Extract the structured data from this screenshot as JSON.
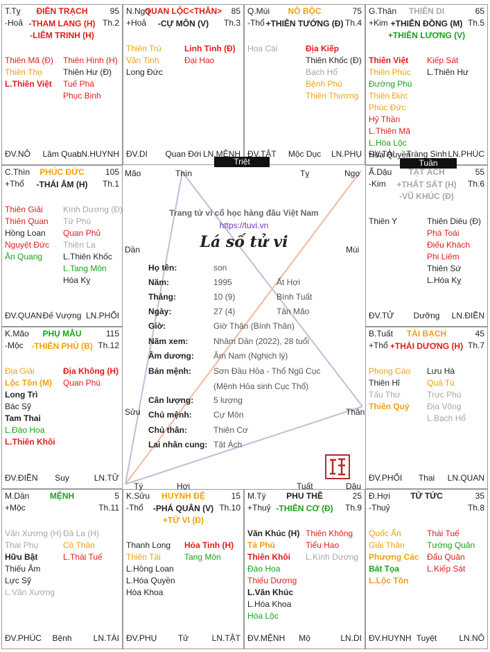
{
  "center": {
    "site_title": "Trang tử vi cổ học hàng đầu Việt Nam",
    "site_url": "https://tuvi.vn",
    "chart_title": "Lá số tử vi",
    "corners": {
      "mao": "Mão",
      "thin": "Thìn",
      "ty": "Tỵ",
      "ngo": "Ngọ",
      "dan": "Dần",
      "mui": "Mùi",
      "suu": "Sửu",
      "than": "Thân",
      "ty2": "Tý",
      "hoi": "Hợi",
      "tuat": "Tuất",
      "dau": "Dậu"
    },
    "rows": [
      {
        "label": "Họ tên:",
        "value": "son",
        "value2": ""
      },
      {
        "label": "Năm:",
        "value": "1995",
        "value2": "Ất Hợi"
      },
      {
        "label": "Tháng:",
        "value": "10 (9)",
        "value2": "Bính Tuất"
      },
      {
        "label": "Ngày:",
        "value": "27 (4)",
        "value2": "Tân Mão"
      },
      {
        "label": "Giờ:",
        "value": "Giờ Thân (Bính Thân)",
        "value2": ""
      },
      {
        "label": "Năm xem:",
        "value": "Nhâm Dần (2022), 28 tuổi",
        "value2": ""
      },
      {
        "label": "Âm dương:",
        "value": "Âm Nam (Nghịch lý)",
        "value2": ""
      },
      {
        "label": "Bản mệnh:",
        "value": "Sơn Đầu Hỏa - Thổ Ngũ Cục",
        "value2": ""
      },
      {
        "label": "",
        "value": "(Mệnh Hỏa sinh Cục Thổ)",
        "value2": ""
      },
      {
        "label": "Cân lượng:",
        "value": "5 lượng",
        "value2": ""
      },
      {
        "label": "Chủ mệnh:",
        "value": "Cự Môn",
        "value2": ""
      },
      {
        "label": "Chủ thân:",
        "value": "Thiên Cơ",
        "value2": ""
      },
      {
        "label": "Lai nhân cung:",
        "value": "Tật Ách",
        "value2": ""
      }
    ],
    "triet_label": "Triệt",
    "tuan_label": "Tuần"
  },
  "palaces": [
    {
      "id": "ty",
      "branch": "T.Tỵ",
      "element": "-Hoả",
      "palace": "ĐIỀN TRẠCH",
      "palace_color": "red",
      "age": "95",
      "th": "Th.2",
      "main": [
        {
          "t": "-THAM LANG (H)",
          "c": "red"
        },
        {
          "t": "-LIÊM TRINH (H)",
          "c": "red"
        }
      ],
      "left": [
        {
          "t": "Thiên Mã (Đ)",
          "c": "red"
        },
        {
          "t": "Thiên Thọ",
          "c": "org"
        },
        {
          "t": "L.Thiên Việt",
          "c": "red",
          "b": true
        }
      ],
      "right": [
        {
          "t": "Thiên Hình (H)",
          "c": "red"
        },
        {
          "t": "Thiên Hư (Đ)",
          "c": "blk"
        },
        {
          "t": "Tuế Phá",
          "c": "red"
        },
        {
          "t": "Phục Binh",
          "c": "red"
        }
      ],
      "foot": [
        "ĐV.NÔ",
        "Lâm Quan",
        "LN.HUYNH"
      ]
    },
    {
      "id": "ngo",
      "branch": "N.Ngọ",
      "element": "+Hoả",
      "palace": "QUAN LỘC<THÂN>",
      "palace_color": "red",
      "age": "85",
      "th": "Th.3",
      "main": [
        {
          "t": "-CỰ MÔN (V)",
          "c": "blk"
        }
      ],
      "left": [
        {
          "t": "Thiên Trù",
          "c": "org"
        },
        {
          "t": "Văn Tinh",
          "c": "org"
        },
        {
          "t": "Long Đức",
          "c": "blk"
        }
      ],
      "right": [
        {
          "t": "Linh Tinh (Đ)",
          "c": "red",
          "b": true
        },
        {
          "t": "Đại Hao",
          "c": "red"
        }
      ],
      "foot": [
        "ĐV.DI",
        "Quan Đới",
        "LN.MỆNH"
      ]
    },
    {
      "id": "mui",
      "branch": "Q.Mùi",
      "element": "-Thổ",
      "palace": "NÔ BỘC",
      "palace_color": "org",
      "age": "75",
      "th": "Th.4",
      "main": [
        {
          "t": "+THIÊN TƯỚNG (Đ)",
          "c": "blk"
        }
      ],
      "left": [
        {
          "t": "Hoa Cái",
          "c": "gry"
        }
      ],
      "right": [
        {
          "t": "Địa Kiếp",
          "c": "red",
          "b": true
        },
        {
          "t": "Thiên Khốc (Đ)",
          "c": "blk"
        },
        {
          "t": "Bạch Hổ",
          "c": "gry"
        },
        {
          "t": "Bệnh Phù",
          "c": "org"
        },
        {
          "t": "Thiên Thương",
          "c": "org"
        }
      ],
      "foot": [
        "ĐV.TẬT",
        "Mộc Dục",
        "LN.PHỤ"
      ]
    },
    {
      "id": "than",
      "branch": "G.Thân",
      "element": "+Kim",
      "palace": "THIÊN DI",
      "palace_color": "gry",
      "age": "65",
      "th": "Th.5",
      "main": [
        {
          "t": "+THIÊN ĐỒNG (M)",
          "c": "blk"
        },
        {
          "t": "+THIÊN LƯƠNG (V)",
          "c": "grn"
        }
      ],
      "left": [
        {
          "t": "Thiên Việt",
          "c": "red",
          "b": true
        },
        {
          "t": "Thiên Phúc",
          "c": "org"
        },
        {
          "t": "Đường Phù",
          "c": "grn"
        },
        {
          "t": "Thiên Đức",
          "c": "org"
        },
        {
          "t": "Phúc Đức",
          "c": "org"
        },
        {
          "t": "Hỷ Thần",
          "c": "red"
        },
        {
          "t": "L.Thiên Mã",
          "c": "red"
        },
        {
          "t": "L.Hóa Lộc",
          "c": "grn"
        },
        {
          "t": "Hóa Quyền",
          "c": "blk"
        }
      ],
      "right": [
        {
          "t": "Kiếp Sát",
          "c": "red"
        },
        {
          "t": "L.Thiên Hư",
          "c": "blk"
        }
      ],
      "foot": [
        "ĐV.TÀI",
        "Tràng Sinh",
        "LN.PHÚC"
      ]
    },
    {
      "id": "thin",
      "branch": "C.Thìn",
      "element": "+Thổ",
      "palace": "PHÚC ĐỨC",
      "palace_color": "org",
      "age": "105",
      "th": "Th.1",
      "main": [
        {
          "t": "-THÁI ÂM (H)",
          "c": "blk"
        }
      ],
      "left": [
        {
          "t": "Thiên Giải",
          "c": "red"
        },
        {
          "t": "Thiên Quan",
          "c": "red"
        },
        {
          "t": "Hồng Loan",
          "c": "blk"
        },
        {
          "t": "Nguyệt Đức",
          "c": "red"
        },
        {
          "t": "Ân Quang",
          "c": "grn"
        }
      ],
      "right": [
        {
          "t": "Kình Dương (Đ)",
          "c": "gry"
        },
        {
          "t": "Tử Phù",
          "c": "gry"
        },
        {
          "t": "Quan Phủ",
          "c": "red"
        },
        {
          "t": "Thiên La",
          "c": "gry"
        },
        {
          "t": "L.Thiên Khốc",
          "c": "blk"
        },
        {
          "t": "L.Tang Môn",
          "c": "grn"
        },
        {
          "t": "Hóa Kỵ",
          "c": "blk"
        }
      ],
      "foot": [
        "ĐV.QUAN",
        "Đế Vượng",
        "LN.PHỐI"
      ]
    },
    {
      "id": "dau",
      "branch": "Ấ.Dậu",
      "element": "-Kim",
      "palace": "TẬT ÁCH",
      "palace_color": "gry",
      "age": "55",
      "th": "Th.6",
      "main": [
        {
          "t": "+THẤT SÁT (H)",
          "c": "gry"
        },
        {
          "t": "-VŨ KHÚC (Đ)",
          "c": "gry"
        }
      ],
      "left": [
        {
          "t": "Thiên Y",
          "c": "blk"
        }
      ],
      "right": [
        {
          "t": "Thiên Diêu (Đ)",
          "c": "blk"
        },
        {
          "t": "Phá Toái",
          "c": "red"
        },
        {
          "t": "Điếu Khách",
          "c": "red"
        },
        {
          "t": "Phi Liêm",
          "c": "red"
        },
        {
          "t": "Thiên Sứ",
          "c": "blk"
        },
        {
          "t": "L.Hóa Kỵ",
          "c": "blk"
        }
      ],
      "foot": [
        "ĐV.TỬ",
        "Dưỡng",
        "LN.ĐIỀN"
      ]
    },
    {
      "id": "mao",
      "branch": "K.Mão",
      "element": "-Mộc",
      "palace": "PHỤ MẪU",
      "palace_color": "grn",
      "age": "115",
      "th": "Th.12",
      "main": [
        {
          "t": "-THIÊN PHỦ (B)",
          "c": "org"
        }
      ],
      "left": [
        {
          "t": "Địa Giải",
          "c": "org"
        },
        {
          "t": "Lộc Tồn (M)",
          "c": "org",
          "b": true
        },
        {
          "t": "Long Trì",
          "c": "blk",
          "b": true
        },
        {
          "t": "Bác Sỹ",
          "c": "blk"
        },
        {
          "t": "Tam Thai",
          "c": "blk",
          "b": true
        },
        {
          "t": "L.Đào Hoa",
          "c": "grn"
        },
        {
          "t": "L.Thiên Khôi",
          "c": "red",
          "b": true
        }
      ],
      "right": [
        {
          "t": "Địa Không (H)",
          "c": "red",
          "b": true
        },
        {
          "t": "Quan Phù",
          "c": "red"
        }
      ],
      "foot": [
        "ĐV.ĐIỀN",
        "Suy",
        "LN.TỬ"
      ]
    },
    {
      "id": "tuat",
      "branch": "B.Tuất",
      "element": "+Thổ",
      "palace": "TÀI BẠCH",
      "palace_color": "org",
      "age": "45",
      "th": "Th.7",
      "main": [
        {
          "t": "+THÁI DƯƠNG (H)",
          "c": "red"
        }
      ],
      "left": [
        {
          "t": "Phong Cáo",
          "c": "org"
        },
        {
          "t": "Thiên Hỉ",
          "c": "blk"
        },
        {
          "t": "Tấu Thư",
          "c": "gry"
        },
        {
          "t": "Thiên Quý",
          "c": "org",
          "b": true
        }
      ],
      "right": [
        {
          "t": "Lưu Hà",
          "c": "blk"
        },
        {
          "t": "Quả Tú",
          "c": "org"
        },
        {
          "t": "Trực Phù",
          "c": "gry"
        },
        {
          "t": "Địa Võng",
          "c": "gry"
        },
        {
          "t": "L.Bạch Hổ",
          "c": "gry"
        }
      ],
      "foot": [
        "ĐV.PHỐI",
        "Thai",
        "LN.QUAN"
      ]
    },
    {
      "id": "dan",
      "branch": "M.Dần",
      "element": "+Mộc",
      "palace": "MỆNH",
      "palace_color": "grn",
      "age": "5",
      "th": "Th.11",
      "main": [],
      "left": [
        {
          "t": "Văn Xương (H)",
          "c": "gry"
        },
        {
          "t": "Thai Phụ",
          "c": "gry"
        },
        {
          "t": "Hữu Bật",
          "c": "blk",
          "b": true
        },
        {
          "t": "Thiếu Âm",
          "c": "blk"
        },
        {
          "t": "Lực Sỹ",
          "c": "blk"
        },
        {
          "t": "L.Văn Xương",
          "c": "gry"
        }
      ],
      "right": [
        {
          "t": "Đà La (H)",
          "c": "gry"
        },
        {
          "t": "Cô Thần",
          "c": "org"
        },
        {
          "t": "L.Thái Tuế",
          "c": "red"
        }
      ],
      "foot": [
        "ĐV.PHÚC",
        "Bệnh",
        "LN.TÀI"
      ]
    },
    {
      "id": "suu",
      "branch": "K.Sửu",
      "element": "-Thổ",
      "palace": "HUYNH ĐỆ",
      "palace_color": "org",
      "age": "15",
      "th": "Th.10",
      "main": [
        {
          "t": "-PHÁ QUÂN (V)",
          "c": "blk"
        },
        {
          "t": "+TỬ VI (Đ)",
          "c": "org"
        }
      ],
      "left": [
        {
          "t": "Thanh Long",
          "c": "blk"
        },
        {
          "t": "Thiên Tài",
          "c": "org"
        },
        {
          "t": "L.Hồng Loan",
          "c": "blk"
        },
        {
          "t": "L.Hóa Quyền",
          "c": "blk"
        },
        {
          "t": "Hóa Khoa",
          "c": "blk"
        }
      ],
      "right": [
        {
          "t": "Hỏa Tinh (H)",
          "c": "red",
          "b": true
        },
        {
          "t": "Tang Môn",
          "c": "grn"
        }
      ],
      "foot": [
        "ĐV.PHỤ",
        "Tử",
        "LN.TẬT"
      ]
    },
    {
      "id": "ty2",
      "branch": "M.Tý",
      "element": "+Thuỷ",
      "palace": "PHU THÊ",
      "palace_color": "blk",
      "age": "25",
      "th": "Th.9",
      "main": [
        {
          "t": "-THIÊN CƠ (Đ)",
          "c": "grn"
        }
      ],
      "left": [
        {
          "t": "Văn Khúc (H)",
          "c": "blk",
          "b": true
        },
        {
          "t": "Tả Phù",
          "c": "org",
          "b": true
        },
        {
          "t": "Thiên Khôi",
          "c": "red",
          "b": true
        },
        {
          "t": "Đào Hoa",
          "c": "grn"
        },
        {
          "t": "Thiếu Dương",
          "c": "red"
        },
        {
          "t": "L.Văn Khúc",
          "c": "blk",
          "b": true
        },
        {
          "t": "L.Hóa Khoa",
          "c": "blk"
        },
        {
          "t": "Hóa Lộc",
          "c": "grn"
        }
      ],
      "right": [
        {
          "t": "Thiên Không",
          "c": "red"
        },
        {
          "t": "Tiểu Hao",
          "c": "red"
        },
        {
          "t": "L.Kình Dương",
          "c": "gry"
        }
      ],
      "foot": [
        "ĐV.MỆNH",
        "Mộ",
        "LN.DI"
      ]
    },
    {
      "id": "hoi",
      "branch": "Đ.Hợi",
      "element": "-Thuỷ",
      "palace": "TỬ TỨC",
      "palace_color": "blk",
      "age": "35",
      "th": "Th.8",
      "main": [],
      "left": [
        {
          "t": "Quốc Ấn",
          "c": "org"
        },
        {
          "t": "Giải Thần",
          "c": "org"
        },
        {
          "t": "Phượng Các",
          "c": "org",
          "b": true
        },
        {
          "t": "Bát Tọa",
          "c": "grn",
          "b": true
        },
        {
          "t": "L.Lộc Tồn",
          "c": "org",
          "b": true
        }
      ],
      "right": [
        {
          "t": "Thái Tuế",
          "c": "red"
        },
        {
          "t": "Tướng Quân",
          "c": "grn"
        },
        {
          "t": "Đẩu Quân",
          "c": "red"
        },
        {
          "t": "L.Kiếp Sát",
          "c": "red"
        }
      ],
      "foot": [
        "ĐV.HUYNH",
        "Tuyệt",
        "LN.NÔ"
      ]
    }
  ]
}
